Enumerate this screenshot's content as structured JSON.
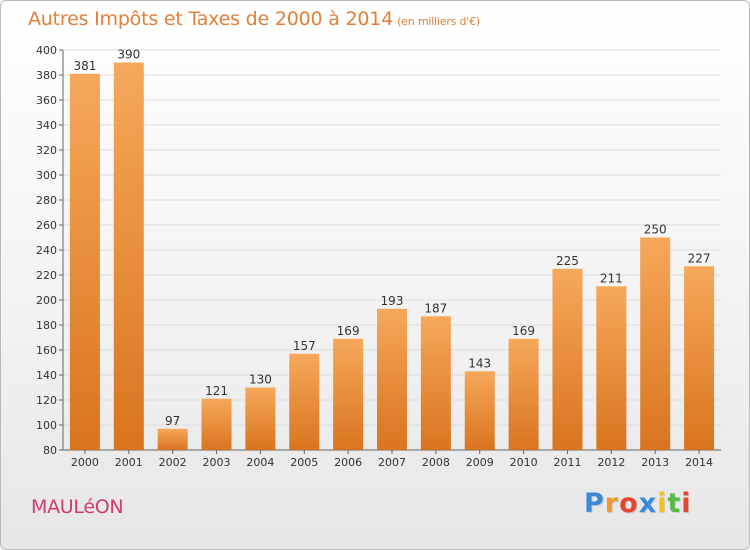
{
  "header": {
    "title": "Autres Impôts et Taxes de 2000 à 2014",
    "unit": "(en milliers d'€)"
  },
  "footer": {
    "place": "MAULéON",
    "brand": "Proxiti",
    "brand_letters": [
      {
        "ch": "P",
        "color": "#3a8ad8"
      },
      {
        "ch": "r",
        "color": "#f09a2a"
      },
      {
        "ch": "o",
        "color": "#e8452e"
      },
      {
        "ch": "x",
        "color": "#3a8ad8"
      },
      {
        "ch": "i",
        "color": "#f5c21a"
      },
      {
        "ch": "t",
        "color": "#58b84a"
      },
      {
        "ch": "i",
        "color": "#e8452e"
      }
    ]
  },
  "colors": {
    "bar_light": "#f6a85a",
    "bar_dark": "#d9741f",
    "title": "#e0803a",
    "place": "#d43a6c"
  },
  "chart_data": {
    "type": "bar",
    "categories": [
      "2000",
      "2001",
      "2002",
      "2003",
      "2004",
      "2005",
      "2006",
      "2007",
      "2008",
      "2009",
      "2010",
      "2011",
      "2012",
      "2013",
      "2014"
    ],
    "values": [
      381,
      390,
      97,
      121,
      130,
      157,
      169,
      193,
      187,
      143,
      169,
      225,
      211,
      250,
      227
    ],
    "ylim": [
      80,
      400
    ],
    "yticks": [
      80,
      100,
      120,
      140,
      160,
      180,
      200,
      220,
      240,
      260,
      280,
      300,
      320,
      340,
      360,
      380,
      400
    ],
    "grid": true
  }
}
